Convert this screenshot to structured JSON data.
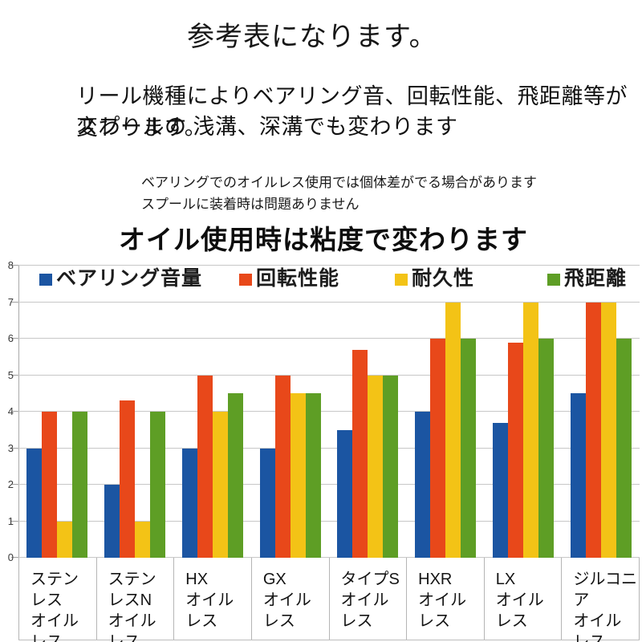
{
  "header": {
    "title": "参考表になります。",
    "description_line1": "リール機種によりベアリング音、回転性能、飛距離等が変わります。",
    "description_line2": "スプールの 浅溝、深溝でも変わります",
    "note_line1": "ベアリングでのオイルレス使用では個体差がでる場合があります",
    "note_line2": "スプールに装着時は問題ありません",
    "subtitle": "オイル使用時は粘度で変わります"
  },
  "chart_data": {
    "type": "bar",
    "title": "",
    "xlabel": "",
    "ylabel": "",
    "ylim": [
      0,
      8
    ],
    "yticks": [
      0,
      1,
      2,
      3,
      4,
      5,
      6,
      7,
      8
    ],
    "grid": true,
    "legend_position": "top",
    "categories": [
      [
        "ステンレス",
        "オイルレス"
      ],
      [
        "ステンレスN",
        "オイルレス"
      ],
      [
        "HX",
        "オイルレス"
      ],
      [
        "GX",
        "オイルレス"
      ],
      [
        "タイプS",
        "オイルレス"
      ],
      [
        "HXR",
        "オイルレス"
      ],
      [
        "LX",
        "オイルレス"
      ],
      [
        "ジルコニア",
        "オイルレス"
      ]
    ],
    "series": [
      {
        "name": "ベアリング音量",
        "color": "#1B55A2",
        "values": [
          3,
          2,
          3,
          3,
          3.5,
          4,
          3.7,
          4.5
        ]
      },
      {
        "name": "回転性能",
        "color": "#E8481A",
        "values": [
          4,
          4.3,
          5,
          5,
          5.7,
          6,
          5.9,
          7
        ]
      },
      {
        "name": "耐久性",
        "color": "#F3C316",
        "values": [
          1,
          1,
          4,
          4.5,
          5,
          7,
          7,
          7
        ]
      },
      {
        "name": "飛距離",
        "color": "#5E9E25",
        "values": [
          4,
          4,
          4.5,
          4.5,
          5,
          6,
          6,
          6
        ]
      }
    ]
  }
}
